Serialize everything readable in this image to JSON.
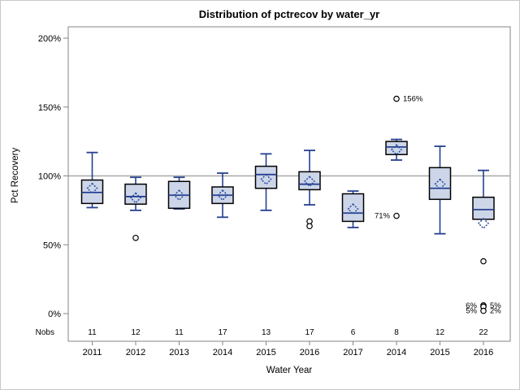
{
  "title": "Distribution of pctrecov by water_yr",
  "y_axis": {
    "title": "Pct Recovery",
    "tick_labels": [
      "0%",
      "50%",
      "100%",
      "150%",
      "200%"
    ],
    "tick_values": [
      0,
      50,
      100,
      150,
      200
    ]
  },
  "x_axis": {
    "title": "Water Year"
  },
  "nobs_label": "Nobs",
  "reference_line_value": 100,
  "colors": {
    "box_fill": "#cdd6e9",
    "box_border": "#000000",
    "whisker": "#26408f",
    "median": "#26408f",
    "mean_marker": "#2b4ea0",
    "outlier_stroke": "#000000",
    "reference_line": "#a8a8a8",
    "frame": "#858585",
    "text": "#000000"
  },
  "chart_data": {
    "type": "boxplot",
    "title": "Distribution of pctrecov by water_yr",
    "xlabel": "Water Year",
    "ylabel": "Pct Recovery",
    "ylim": [
      0,
      208
    ],
    "y_unit": "%",
    "categories": [
      "2011",
      "2012",
      "2013",
      "2014",
      "2015",
      "2016",
      "2017",
      "2014",
      "2015",
      "2016"
    ],
    "nobs": [
      11,
      12,
      11,
      17,
      13,
      17,
      6,
      8,
      12,
      22
    ],
    "series": [
      {
        "year": "2011",
        "nobs": 11,
        "low": 77,
        "q1": 80,
        "median": 88,
        "q3": 97,
        "high": 117,
        "mean": 91,
        "outliers": []
      },
      {
        "year": "2012",
        "nobs": 12,
        "low": 75,
        "q1": 79.5,
        "median": 85,
        "q3": 94,
        "high": 99,
        "mean": 84,
        "outliers": [
          {
            "value": 55
          }
        ]
      },
      {
        "year": "2013",
        "nobs": 11,
        "low": 76,
        "q1": 76.5,
        "median": 86,
        "q3": 96,
        "high": 99,
        "mean": 86,
        "outliers": []
      },
      {
        "year": "2014",
        "nobs": 17,
        "low": 70,
        "q1": 80,
        "median": 86,
        "q3": 92,
        "high": 102,
        "mean": 86,
        "outliers": []
      },
      {
        "year": "2015",
        "nobs": 13,
        "low": 75,
        "q1": 91,
        "median": 101,
        "q3": 107,
        "high": 116,
        "mean": 97.5,
        "outliers": []
      },
      {
        "year": "2016",
        "nobs": 17,
        "low": 79,
        "q1": 90,
        "median": 94,
        "q3": 103,
        "high": 118.5,
        "mean": 96,
        "outliers": [
          {
            "value": 67
          },
          {
            "value": 63.5
          }
        ]
      },
      {
        "year": "2017",
        "nobs": 6,
        "low": 62.5,
        "q1": 67,
        "median": 73,
        "q3": 87,
        "high": 89,
        "mean": 76,
        "outliers": []
      },
      {
        "year": "2014",
        "nobs": 8,
        "low": 111.5,
        "q1": 115.5,
        "median": 121,
        "q3": 125,
        "high": 126.5,
        "mean": 119,
        "outliers": [
          {
            "value": 156,
            "label": "156%",
            "side": "right"
          },
          {
            "value": 71,
            "label": "71%",
            "side": "left"
          }
        ]
      },
      {
        "year": "2015",
        "nobs": 12,
        "low": 58,
        "q1": 83,
        "median": 91,
        "q3": 106,
        "high": 121.5,
        "mean": 94,
        "outliers": []
      },
      {
        "year": "2016",
        "nobs": 22,
        "low": 68.5,
        "q1": 68.5,
        "median": 75.5,
        "q3": 84.5,
        "high": 104,
        "mean": 65.5,
        "outliers": [
          {
            "value": 38
          },
          {
            "value": 6,
            "label": "6%",
            "side": "left",
            "label_value": 6
          },
          {
            "value": 5,
            "label": "5%",
            "side": "right",
            "label_value": 6
          },
          {
            "value": 5,
            "label": "5%",
            "side": "left",
            "label_value": 2
          },
          {
            "value": 2,
            "label": "2%",
            "side": "right",
            "label_value": 2
          }
        ]
      }
    ]
  }
}
